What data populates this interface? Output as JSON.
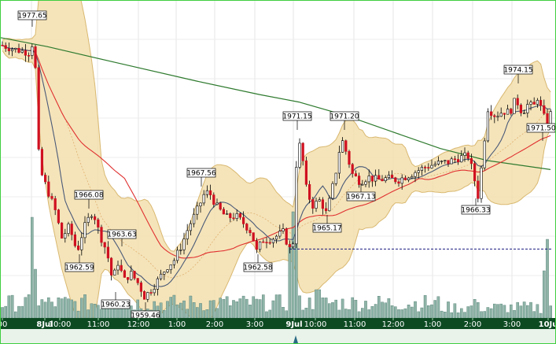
{
  "chart_data": {
    "type": "candlestick",
    "title": "",
    "x_ticks": [
      {
        "label": "00",
        "bold": false
      },
      {
        "label": "8Jul",
        "bold": true
      },
      {
        "label": "10:00",
        "bold": false
      },
      {
        "label": "11:00",
        "bold": false
      },
      {
        "label": "12:00",
        "bold": false
      },
      {
        "label": "1:00",
        "bold": false
      },
      {
        "label": "2:00",
        "bold": false
      },
      {
        "label": "3:00",
        "bold": false
      },
      {
        "label": "9Jul",
        "bold": true
      },
      {
        "label": "10:00",
        "bold": false
      },
      {
        "label": "11:00",
        "bold": false
      },
      {
        "label": "12:00",
        "bold": false
      },
      {
        "label": "1:00",
        "bold": false
      },
      {
        "label": "2:00",
        "bold": false
      },
      {
        "label": "3:00",
        "bold": false
      },
      {
        "label": "10Ju",
        "bold": true
      }
    ],
    "annotations": [
      {
        "label": "1977.65",
        "value": 1977.65,
        "kind": "high"
      },
      {
        "label": "1966.08",
        "value": 1966.08,
        "kind": "high"
      },
      {
        "label": "1963.63",
        "value": 1963.63,
        "kind": "high"
      },
      {
        "label": "1962.59",
        "value": 1962.59,
        "kind": "low"
      },
      {
        "label": "1960.23",
        "value": 1960.23,
        "kind": "low"
      },
      {
        "label": "1959.46",
        "value": 1959.46,
        "kind": "low"
      },
      {
        "label": "1967.56",
        "value": 1967.56,
        "kind": "high"
      },
      {
        "label": "1962.58",
        "value": 1962.58,
        "kind": "low"
      },
      {
        "label": "1971.15",
        "value": 1971.15,
        "kind": "high"
      },
      {
        "label": "1971.20",
        "value": 1971.2,
        "kind": "high"
      },
      {
        "label": "1965.17",
        "value": 1965.17,
        "kind": "low"
      },
      {
        "label": "1967.13",
        "value": 1967.13,
        "kind": "low"
      },
      {
        "label": "1966.33",
        "value": 1966.33,
        "kind": "low"
      },
      {
        "label": "1974.15",
        "value": 1974.15,
        "kind": "high"
      },
      {
        "label": "1971.50",
        "value": 1971.5,
        "kind": "last"
      }
    ],
    "reference_line": {
      "value": 1963.1,
      "style": "dashed",
      "color": "#1a1a80"
    },
    "ylim": [
      1958.5,
      1979.6
    ],
    "colors": {
      "up": "#ffffff",
      "down": "#d01020",
      "band_fill": "#f3dfae",
      "band_stroke": "#d9b870",
      "ma_fast": "#4a5a78",
      "ma_mid": "#e03030",
      "ma_slow": "#2e7a2e",
      "volume": "#8fb4a8",
      "volume_edge": "#4d7a6e",
      "axis_bg": "#0d4a22",
      "frame": "#3fce3f"
    },
    "grid": true,
    "legend": "none"
  }
}
